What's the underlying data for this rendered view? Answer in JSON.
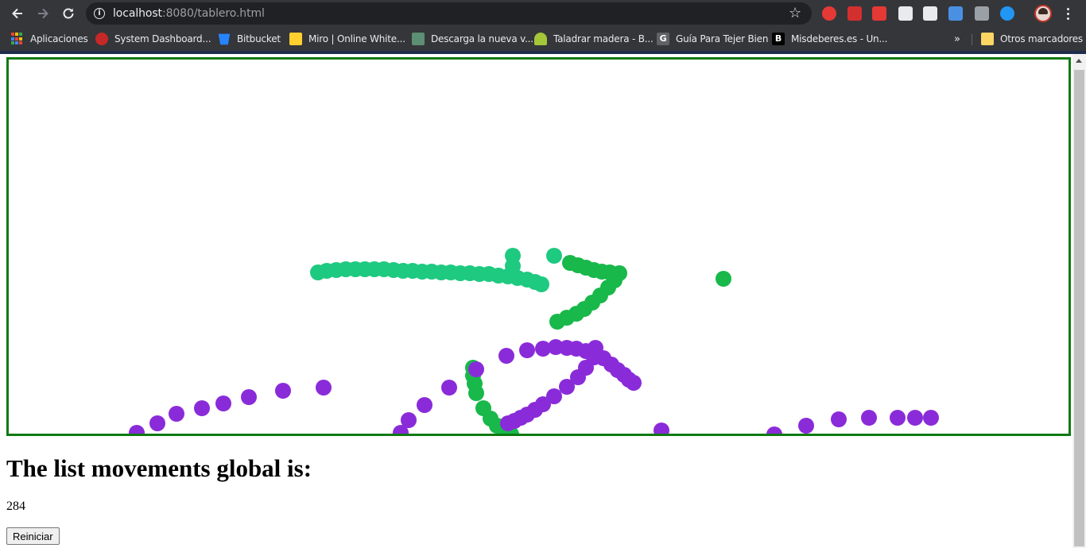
{
  "browser": {
    "url_host": "localhost",
    "url_rest": ":8080/tablero.html",
    "bookmarks": [
      {
        "label": "Aplicaciones",
        "icon": "apps-grid-icon"
      },
      {
        "label": "System Dashboard...",
        "icon": "system-dashboard-icon"
      },
      {
        "label": "Bitbucket",
        "icon": "bitbucket-icon"
      },
      {
        "label": "Miro | Online White...",
        "icon": "miro-icon"
      },
      {
        "label": "Descarga la nueva v...",
        "icon": "download-icon"
      },
      {
        "label": "Taladrar madera - B...",
        "icon": "android-icon"
      },
      {
        "label": "Guía Para Tejer Bien",
        "icon": "g-icon"
      },
      {
        "label": "Misdeberes.es - Un...",
        "icon": "misdeberes-icon"
      }
    ],
    "bookmarks_more": "»",
    "other_bookmarks": "Otros marcadores",
    "extensions": [
      {
        "name": "adblock-icon",
        "color": "#e53935"
      },
      {
        "name": "pin-icon",
        "color": "#d32f2f"
      },
      {
        "name": "m-icon",
        "color": "#e53935"
      },
      {
        "name": "window-icon",
        "color": "#e8eaed"
      },
      {
        "name": "printer-icon",
        "color": "#e8eaed"
      },
      {
        "name": "file-icon",
        "color": "#4a90e2"
      },
      {
        "name": "screen-icon",
        "color": "#9aa0a6"
      },
      {
        "name": "shield-icon",
        "color": "#2196f3"
      }
    ]
  },
  "page": {
    "heading": "The list movements global is:",
    "count": "284",
    "reset_label": "Reiniciar"
  },
  "board": {
    "border_color": "#0d7a12",
    "stroke_colors": {
      "teal": "#1ec980",
      "green": "#18b84a",
      "purple": "#8a2bd9"
    }
  }
}
